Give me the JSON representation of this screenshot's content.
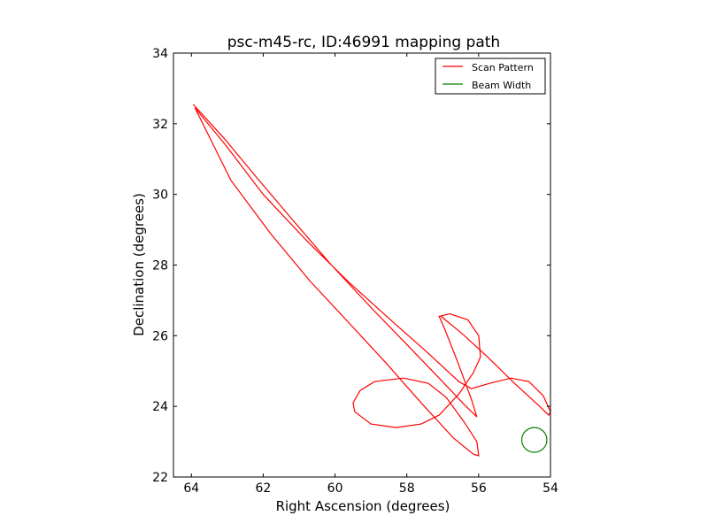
{
  "chart_data": {
    "type": "line",
    "title": "psc-m45-rc, ID:46991 mapping path",
    "xlabel": "Right Ascension (degrees)",
    "ylabel": "Declination (degrees)",
    "xlim": [
      64.5,
      54
    ],
    "ylim": [
      22,
      34
    ],
    "x_ticks": [
      64,
      62,
      60,
      58,
      56,
      54
    ],
    "y_ticks": [
      22,
      24,
      26,
      28,
      30,
      32,
      34
    ],
    "x_tick_labels": [
      "64",
      "62",
      "60",
      "58",
      "56",
      "54"
    ],
    "y_tick_labels": [
      "22",
      "24",
      "26",
      "28",
      "30",
      "32",
      "34"
    ],
    "grid": false,
    "legend": {
      "position": "top-right",
      "entries": [
        {
          "label": "Scan Pattern",
          "color": "#ff0000"
        },
        {
          "label": "Beam Width",
          "color": "#008000"
        }
      ]
    },
    "series": [
      {
        "name": "Scan Pattern",
        "color": "#ff0000",
        "points": [
          [
            63.95,
            32.55
          ],
          [
            63.1,
            31.6
          ],
          [
            62.2,
            30.5
          ],
          [
            61.2,
            29.3
          ],
          [
            60.1,
            28.0
          ],
          [
            59.0,
            26.8
          ],
          [
            58.0,
            25.75
          ],
          [
            57.1,
            24.8
          ],
          [
            56.4,
            24.05
          ],
          [
            56.05,
            23.7
          ],
          [
            56.2,
            24.2
          ],
          [
            56.6,
            25.3
          ],
          [
            56.95,
            26.2
          ],
          [
            57.1,
            26.55
          ],
          [
            57.1,
            26.55
          ],
          [
            56.8,
            26.62
          ],
          [
            56.3,
            26.45
          ],
          [
            56.0,
            26.0
          ],
          [
            55.95,
            25.4
          ],
          [
            56.15,
            24.95
          ],
          [
            56.55,
            24.35
          ],
          [
            57.1,
            23.75
          ],
          [
            57.6,
            23.5
          ],
          [
            58.3,
            23.4
          ],
          [
            59.0,
            23.5
          ],
          [
            59.45,
            23.85
          ],
          [
            59.5,
            24.1
          ],
          [
            59.3,
            24.45
          ],
          [
            58.9,
            24.7
          ],
          [
            58.1,
            24.8
          ],
          [
            57.4,
            24.65
          ],
          [
            56.9,
            24.25
          ],
          [
            56.4,
            23.55
          ],
          [
            56.05,
            23.0
          ],
          [
            56.0,
            22.6
          ],
          [
            56.15,
            22.65
          ],
          [
            56.7,
            23.1
          ],
          [
            57.6,
            24.1
          ],
          [
            58.6,
            25.25
          ],
          [
            59.6,
            26.35
          ],
          [
            60.7,
            27.55
          ],
          [
            61.8,
            28.9
          ],
          [
            62.9,
            30.4
          ],
          [
            63.9,
            32.45
          ],
          [
            63.05,
            31.4
          ],
          [
            62.0,
            30.0
          ],
          [
            60.8,
            28.7
          ],
          [
            59.6,
            27.5
          ],
          [
            58.4,
            26.4
          ],
          [
            57.4,
            25.5
          ],
          [
            56.55,
            24.7
          ],
          [
            56.2,
            24.5
          ],
          [
            55.7,
            24.65
          ],
          [
            55.1,
            24.8
          ],
          [
            54.6,
            24.7
          ],
          [
            54.2,
            24.3
          ],
          [
            54.0,
            23.85
          ],
          [
            54.05,
            23.75
          ],
          [
            54.3,
            24.0
          ],
          [
            55.0,
            24.65
          ],
          [
            55.7,
            25.35
          ],
          [
            56.45,
            26.05
          ],
          [
            57.05,
            26.55
          ]
        ]
      },
      {
        "name": "Beam Width",
        "color": "#008000",
        "center": [
          54.45,
          23.05
        ],
        "radius": 0.35
      }
    ]
  }
}
